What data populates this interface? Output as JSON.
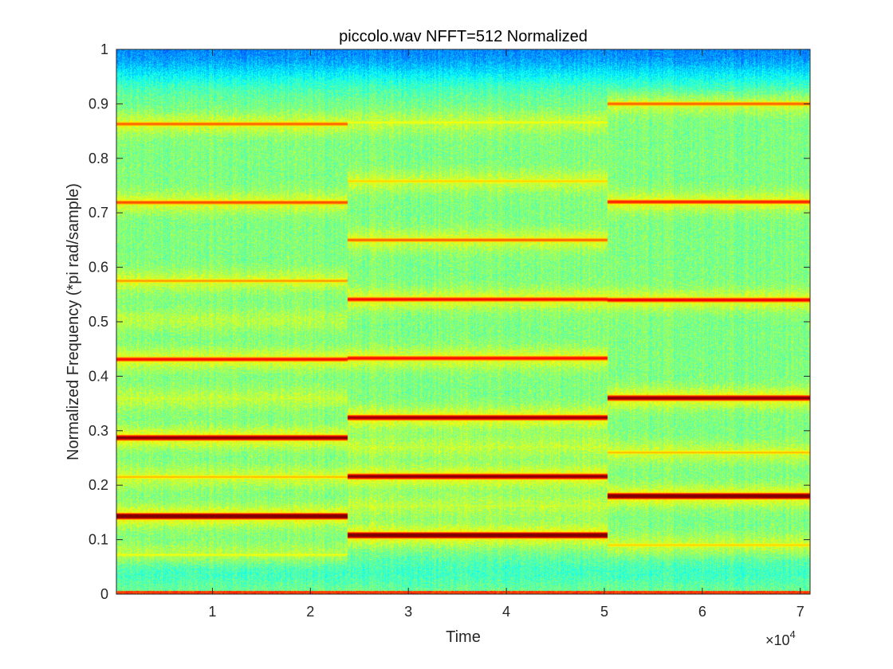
{
  "chart_data": {
    "type": "heatmap",
    "title": "piccolo.wav NFFT=512 Normalized",
    "xlabel": "Time",
    "ylabel": "Normalized Frequency (*pi rad/sample)",
    "xlim": [
      200,
      71000
    ],
    "ylim": [
      0,
      1
    ],
    "x_exponent_label": "×10",
    "x_exponent_power": "4",
    "x_ticks": [
      10000,
      20000,
      30000,
      40000,
      50000,
      60000,
      70000
    ],
    "x_tick_labels": [
      "1",
      "2",
      "3",
      "4",
      "5",
      "6",
      "7"
    ],
    "y_ticks": [
      0,
      0.1,
      0.2,
      0.3,
      0.4,
      0.5,
      0.6,
      0.7,
      0.8,
      0.9,
      1
    ],
    "y_tick_labels": [
      "0",
      "0.1",
      "0.2",
      "0.3",
      "0.4",
      "0.5",
      "0.6",
      "0.7",
      "0.8",
      "0.9",
      "1"
    ],
    "colormap": [
      "#00007f",
      "#0000ff",
      "#0080ff",
      "#00ffff",
      "#80ff80",
      "#ffff00",
      "#ff8000",
      "#ff0000",
      "#800000"
    ],
    "segments": [
      {
        "note": "1",
        "t_start": 200,
        "t_end": 23800,
        "harmonics": [
          {
            "f": 0.072,
            "level": 0.55
          },
          {
            "f": 0.143,
            "level": 0.98
          },
          {
            "f": 0.215,
            "level": 0.62
          },
          {
            "f": 0.287,
            "level": 0.9
          },
          {
            "f": 0.359,
            "level": 0.5
          },
          {
            "f": 0.431,
            "level": 0.78
          },
          {
            "f": 0.503,
            "level": 0.45
          },
          {
            "f": 0.575,
            "level": 0.65
          },
          {
            "f": 0.719,
            "level": 0.72
          },
          {
            "f": 0.863,
            "level": 0.7
          }
        ]
      },
      {
        "note": "2",
        "t_start": 23800,
        "t_end": 50300,
        "harmonics": [
          {
            "f": 0.108,
            "level": 0.98
          },
          {
            "f": 0.162,
            "level": 0.5
          },
          {
            "f": 0.216,
            "level": 0.9
          },
          {
            "f": 0.27,
            "level": 0.5
          },
          {
            "f": 0.324,
            "level": 0.88
          },
          {
            "f": 0.433,
            "level": 0.78
          },
          {
            "f": 0.541,
            "level": 0.78
          },
          {
            "f": 0.65,
            "level": 0.7
          },
          {
            "f": 0.758,
            "level": 0.6
          },
          {
            "f": 0.866,
            "level": 0.55
          }
        ]
      },
      {
        "note": "3",
        "t_start": 50300,
        "t_end": 71000,
        "harmonics": [
          {
            "f": 0.09,
            "level": 0.6
          },
          {
            "f": 0.18,
            "level": 0.97
          },
          {
            "f": 0.26,
            "level": 0.62
          },
          {
            "f": 0.36,
            "level": 0.9
          },
          {
            "f": 0.54,
            "level": 0.8
          },
          {
            "f": 0.72,
            "level": 0.76
          },
          {
            "f": 0.9,
            "level": 0.7
          }
        ]
      }
    ]
  }
}
